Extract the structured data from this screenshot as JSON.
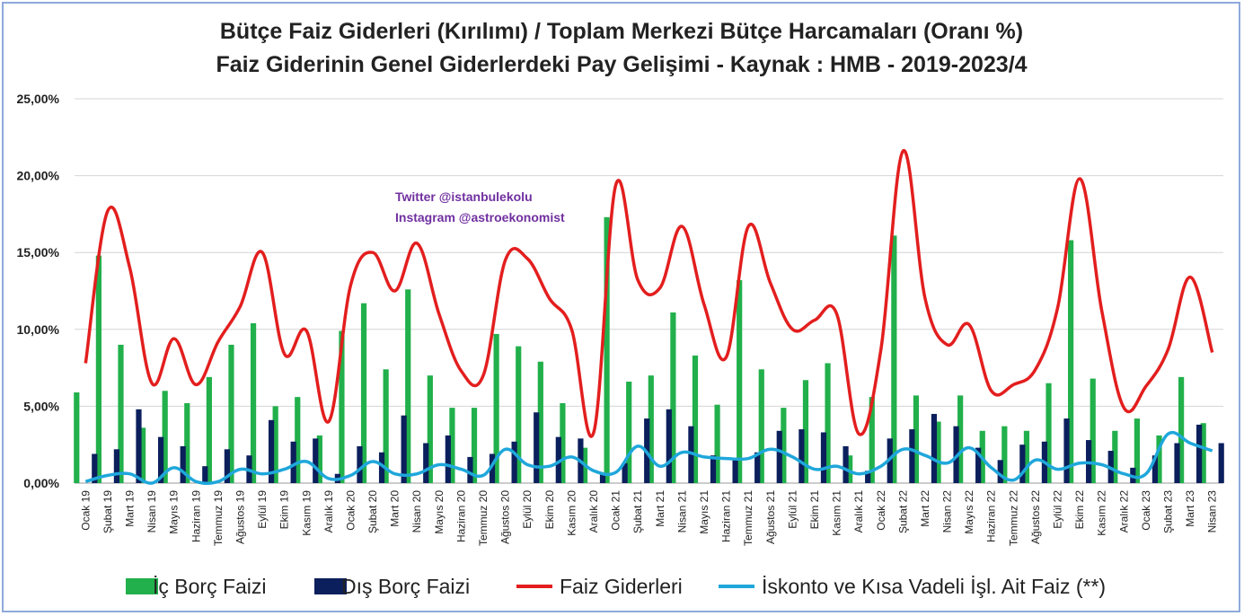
{
  "chart_data": {
    "type": "bar",
    "title": "Bütçe Faiz Giderleri (Kırılımı) / Toplam Merkezi Bütçe Harcamaları (Oranı %)",
    "subtitle": "Faiz Giderinin Genel Giderlerdeki Pay Gelişimi - Kaynak : HMB - 2019-2023/4",
    "ylim": [
      0,
      25
    ],
    "yticks": [
      0,
      5,
      10,
      15,
      20,
      25
    ],
    "ytick_labels": [
      "0,00%",
      "5,00%",
      "10,00%",
      "15,00%",
      "20,00%",
      "25,00%"
    ],
    "grid": true,
    "legend_position": "bottom",
    "categories": [
      "Ocak 19",
      "Şubat 19",
      "Mart 19",
      "Nisan 19",
      "Mayıs 19",
      "Haziran 19",
      "Temmuz 19",
      "Ağustos 19",
      "Eylül 19",
      "Ekim 19",
      "Kasım 19",
      "Aralık 19",
      "Ocak 20",
      "Şubat 20",
      "Mart 20",
      "Nisan 20",
      "Mayıs 20",
      "Haziran 20",
      "Temmuz 20",
      "Ağustos 20",
      "Eylül 20",
      "Ekim 20",
      "Kasım 20",
      "Aralık 20",
      "Ocak 21",
      "Şubat 21",
      "Mart 21",
      "Nisan 21",
      "Mayıs 21",
      "Haziran 21",
      "Temmuz 21",
      "Ağustos 21",
      "Eylül 21",
      "Ekim 21",
      "Kasım 21",
      "Aralık 21",
      "Ocak 22",
      "Şubat 22",
      "Mart 22",
      "Nisan 22",
      "Mayıs 22",
      "Haziran 22",
      "Temmuz 22",
      "Ağustos 22",
      "Eylül 22",
      "Ekim 22",
      "Kasım 22",
      "Aralık 22",
      "Ocak 23",
      "Şubat 23",
      "Mart 23",
      "Nisan 23"
    ],
    "series": [
      {
        "name": "İç Borç Faizi",
        "kind": "bar",
        "color": "#21b04b",
        "values": [
          5.9,
          14.8,
          9.0,
          3.6,
          6.0,
          5.2,
          6.9,
          9.0,
          10.4,
          5.0,
          5.6,
          3.1,
          9.9,
          11.7,
          7.4,
          12.6,
          7.0,
          4.9,
          4.9,
          9.7,
          8.9,
          7.9,
          5.2,
          2.3,
          17.3,
          6.6,
          7.0,
          11.1,
          8.3,
          5.1,
          13.2,
          7.4,
          4.9,
          6.7,
          7.8,
          1.8,
          5.6,
          16.1,
          5.7,
          4.0,
          5.7,
          3.4,
          3.7,
          3.4,
          6.5,
          15.8,
          6.8,
          3.4,
          4.2,
          3.1,
          6.9,
          3.9
        ]
      },
      {
        "name": "Dış Borç Faizi",
        "kind": "bar",
        "color": "#0b1f5c",
        "values": [
          1.9,
          2.2,
          4.8,
          3.0,
          2.4,
          1.1,
          2.2,
          1.8,
          4.1,
          2.7,
          2.9,
          0.6,
          2.4,
          2.0,
          4.4,
          2.6,
          3.1,
          1.7,
          1.9,
          2.7,
          4.6,
          3.0,
          2.9,
          0.6,
          1.3,
          4.2,
          4.8,
          3.7,
          1.8,
          1.5,
          2.0,
          3.4,
          3.5,
          3.3,
          2.4,
          0.8,
          2.9,
          3.5,
          4.5,
          3.7,
          2.3,
          1.5,
          2.5,
          2.7,
          4.2,
          2.8,
          2.1,
          1.0,
          1.8,
          2.6,
          3.8,
          2.6
        ]
      },
      {
        "name": "Faiz Giderleri",
        "kind": "line",
        "color": "#e31e1e",
        "values": [
          7.8,
          17.7,
          14.0,
          6.5,
          9.4,
          6.4,
          9.2,
          11.5,
          15.0,
          8.4,
          9.9,
          4.0,
          12.9,
          15.0,
          12.5,
          15.6,
          11.0,
          7.3,
          7.0,
          14.5,
          14.6,
          12.0,
          10.0,
          3.3,
          19.4,
          13.2,
          12.7,
          16.7,
          11.6,
          8.2,
          16.7,
          13.0,
          10.0,
          10.6,
          11.0,
          3.2,
          8.7,
          21.6,
          12.0,
          9.0,
          10.3,
          6.0,
          6.4,
          7.4,
          11.4,
          19.8,
          11.2,
          4.9,
          6.3,
          8.7,
          13.4,
          8.5
        ]
      },
      {
        "name": "İskonto ve Kısa Vadeli İşl. Ait Faiz (**)",
        "kind": "line",
        "color": "#1fa7db",
        "values": [
          0.1,
          0.5,
          0.6,
          0.0,
          1.0,
          0.1,
          0.1,
          0.9,
          0.6,
          0.9,
          1.4,
          0.3,
          0.5,
          1.4,
          0.6,
          0.6,
          1.2,
          0.9,
          0.5,
          2.2,
          1.2,
          1.1,
          1.7,
          0.8,
          0.7,
          2.4,
          1.1,
          2.0,
          1.7,
          1.6,
          1.6,
          2.2,
          1.7,
          0.9,
          1.1,
          0.6,
          1.1,
          2.2,
          1.8,
          1.3,
          2.3,
          1.0,
          0.2,
          1.5,
          0.9,
          1.3,
          1.2,
          0.6,
          0.6,
          3.2,
          2.6,
          2.1
        ]
      }
    ],
    "annotations": [
      "Twitter @istanbulekolu",
      "Instagram @astroekonomist"
    ]
  }
}
